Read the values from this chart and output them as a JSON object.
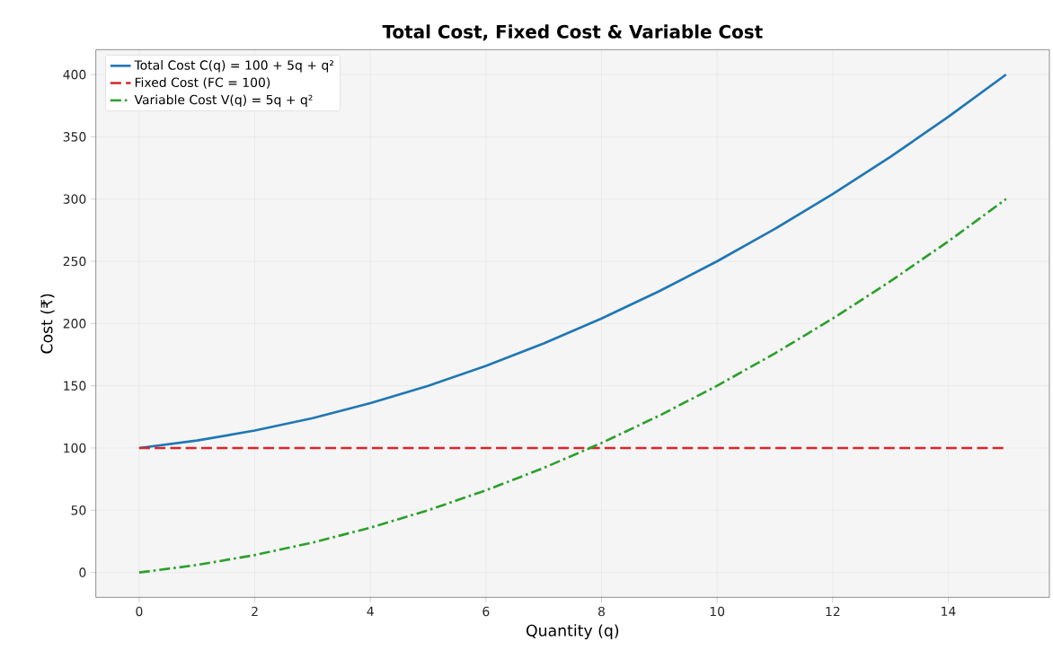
{
  "chart_data": {
    "type": "line",
    "title": "Total Cost, Fixed Cost & Variable Cost",
    "xlabel": "Quantity (q)",
    "ylabel": "Cost (₹)",
    "x": [
      0,
      1,
      2,
      3,
      4,
      5,
      6,
      7,
      8,
      9,
      10,
      11,
      12,
      13,
      14,
      15
    ],
    "series": [
      {
        "name": "Total Cost C(q) = 100 + 5q + q²",
        "color": "#1f77b4",
        "line_style": "solid",
        "values": [
          100,
          106,
          114,
          124,
          136,
          150,
          166,
          184,
          204,
          226,
          250,
          276,
          304,
          334,
          366,
          400
        ]
      },
      {
        "name": "Fixed Cost (FC = 100)",
        "color": "#d62728",
        "line_style": "dashed",
        "values": [
          100,
          100,
          100,
          100,
          100,
          100,
          100,
          100,
          100,
          100,
          100,
          100,
          100,
          100,
          100,
          100
        ]
      },
      {
        "name": "Variable Cost V(q) = 5q + q²",
        "color": "#2ca02c",
        "line_style": "dashdot",
        "values": [
          0,
          6,
          14,
          24,
          36,
          50,
          66,
          84,
          104,
          126,
          150,
          176,
          204,
          234,
          266,
          300
        ]
      }
    ],
    "xlim": [
      -0.75,
      15.75
    ],
    "ylim": [
      -20,
      420
    ],
    "xticks": [
      0,
      2,
      4,
      6,
      8,
      10,
      12,
      14
    ],
    "yticks": [
      0,
      50,
      100,
      150,
      200,
      250,
      300,
      350,
      400
    ],
    "grid": true,
    "legend": "top left",
    "marker": "none"
  }
}
